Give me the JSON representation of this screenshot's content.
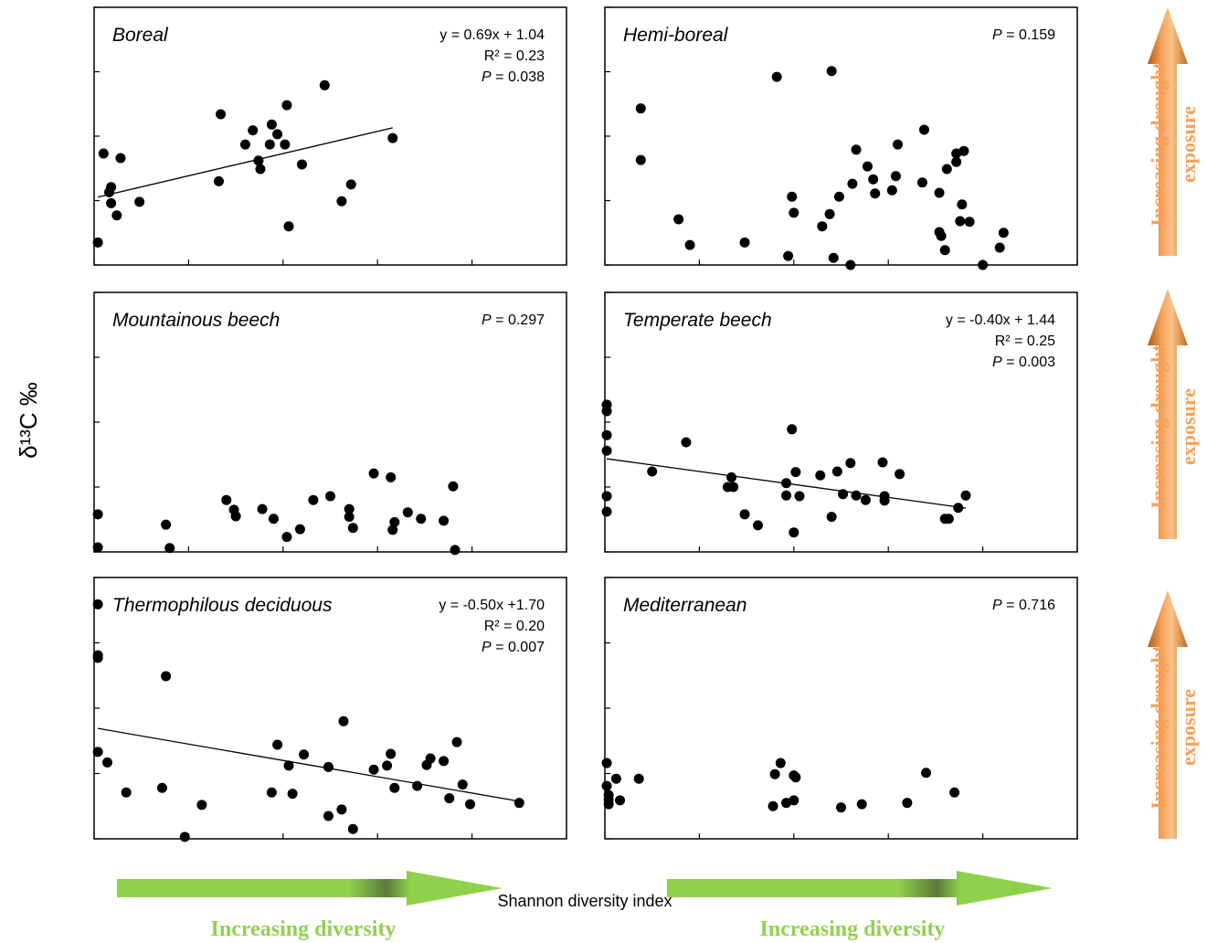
{
  "figure": {
    "x_axis_label": "Shannon diversity index",
    "y_axis_label": "δ¹³C ‰",
    "diversity_label": "Increasing diversity",
    "drought_label": [
      "Increasing drought",
      "exposure"
    ]
  },
  "chart_data": [
    {
      "type": "scatter",
      "title": "Boreal",
      "color": "#000000",
      "xlim": [
        0,
        2.5
      ],
      "ylim": [
        0,
        4
      ],
      "xticks": [
        0,
        0.5,
        1,
        1.5,
        2,
        2.5
      ],
      "yticks": [
        0,
        1,
        2,
        3,
        4
      ],
      "equation": "y = 0.69x + 1.04",
      "r_squared": "R² = 0.23",
      "p": {
        "symbol": "P",
        "text": " = 0.038"
      },
      "fit": {
        "slope": 0.69,
        "intercept": 1.04,
        "x_range": [
          0.02,
          1.58
        ]
      },
      "x": [
        0.02,
        0.05,
        0.08,
        0.09,
        0.09,
        0.12,
        0.14,
        0.24,
        0.66,
        0.67,
        0.8,
        0.84,
        0.87,
        0.88,
        0.94,
        0.97,
        0.93,
        1.01,
        1.02,
        1.03,
        1.1,
        1.22,
        1.31,
        1.36,
        1.58
      ],
      "values": [
        0.35,
        1.73,
        1.13,
        1.21,
        0.96,
        0.77,
        1.66,
        0.98,
        1.3,
        2.34,
        1.87,
        2.09,
        1.62,
        1.49,
        2.18,
        2.03,
        1.87,
        1.87,
        2.48,
        0.6,
        1.56,
        2.79,
        0.99,
        1.25,
        1.97
      ]
    },
    {
      "type": "scatter",
      "title": "Hemi-boreal",
      "color": "#000000",
      "xlim": [
        0,
        2.5
      ],
      "ylim": [
        0,
        4
      ],
      "xticks": [
        0,
        0.5,
        1,
        1.5,
        2,
        2.5
      ],
      "yticks": [
        0,
        1,
        2,
        3,
        4
      ],
      "p": {
        "symbol": "P",
        "text": " = 0.159"
      },
      "x": [
        0.19,
        0.19,
        0.39,
        0.45,
        0.74,
        0.91,
        0.97,
        0.99,
        1.0,
        1.15,
        1.19,
        1.2,
        1.21,
        1.24,
        1.3,
        1.31,
        1.33,
        1.39,
        1.42,
        1.43,
        1.52,
        1.54,
        1.55,
        1.68,
        1.69,
        1.77,
        1.77,
        1.78,
        1.8,
        1.81,
        1.86,
        1.86,
        1.9,
        1.89,
        1.88,
        1.93,
        2.0,
        2.09,
        2.11
      ],
      "values": [
        2.43,
        1.63,
        0.71,
        0.31,
        0.35,
        2.92,
        0.14,
        1.06,
        0.81,
        0.6,
        0.79,
        3.01,
        0.11,
        1.06,
        0,
        1.26,
        1.79,
        1.53,
        1.33,
        1.11,
        1.16,
        1.38,
        1.87,
        1.28,
        2.1,
        1.12,
        0.51,
        0.45,
        0.23,
        1.49,
        1.6,
        1.73,
        1.77,
        0.94,
        0.68,
        0.67,
        0,
        0.27,
        0.5
      ]
    },
    {
      "type": "scatter",
      "title": "Mountainous beech",
      "color": "#000000",
      "xlim": [
        0,
        2.5
      ],
      "ylim": [
        0,
        4
      ],
      "xticks": [
        0,
        0.5,
        1,
        1.5,
        2,
        2.5
      ],
      "yticks": [
        0,
        1,
        2,
        3,
        4
      ],
      "p": {
        "symbol": "P",
        "text": " = 0.297"
      },
      "x": [
        0.02,
        0.02,
        0.38,
        0.4,
        0.7,
        0.74,
        0.75,
        0.89,
        0.95,
        1.02,
        1.09,
        1.16,
        1.25,
        1.35,
        1.35,
        1.37,
        1.48,
        1.57,
        1.59,
        1.58,
        1.66,
        1.73,
        1.85,
        1.9,
        1.91
      ],
      "values": [
        0.58,
        0.07,
        0.42,
        0.06,
        0.8,
        0.65,
        0.55,
        0.66,
        0.51,
        0.23,
        0.35,
        0.8,
        0.86,
        0.66,
        0.54,
        0.37,
        1.21,
        1.15,
        0.46,
        0.34,
        0.61,
        0.51,
        0.48,
        1.01,
        0.03
      ]
    },
    {
      "type": "scatter",
      "title": "Temperate beech",
      "color": "#000000",
      "xlim": [
        0,
        2.5
      ],
      "ylim": [
        0,
        4
      ],
      "xticks": [
        0,
        0.5,
        1,
        1.5,
        2,
        2.5
      ],
      "yticks": [
        0,
        1,
        2,
        3,
        4
      ],
      "equation": "y = -0.40x + 1.44",
      "r_squared": "R² = 0.25",
      "p": {
        "symbol": "P",
        "text": " = 0.003"
      },
      "fit": {
        "slope": -0.4,
        "intercept": 1.44,
        "x_range": [
          0.01,
          1.91
        ]
      },
      "x": [
        0.01,
        0.01,
        0.01,
        0.01,
        0.01,
        0.01,
        0.25,
        0.43,
        0.65,
        0.67,
        0.68,
        0.74,
        0.81,
        0.96,
        0.96,
        0.99,
        1.0,
        1.01,
        1.03,
        1.14,
        1.2,
        1.23,
        1.26,
        1.3,
        1.33,
        1.38,
        1.47,
        1.48,
        1.48,
        1.56,
        1.8,
        1.82,
        1.87,
        1.91
      ],
      "values": [
        2.27,
        2.17,
        1.8,
        1.56,
        0.86,
        0.62,
        1.24,
        1.69,
        1.0,
        1.15,
        1.0,
        0.58,
        0.41,
        0.87,
        1.06,
        1.89,
        0.3,
        1.23,
        0.86,
        1.18,
        0.54,
        1.24,
        0.89,
        1.37,
        0.87,
        0.8,
        1.38,
        0.86,
        0.79,
        1.2,
        0.51,
        0.51,
        0.68,
        0.87
      ]
    },
    {
      "type": "scatter",
      "title": "Thermophilous deciduous",
      "color": "#000000",
      "xlim": [
        0,
        2.5
      ],
      "ylim": [
        0,
        4
      ],
      "xticks": [
        0,
        0.5,
        1,
        1.5,
        2,
        2.5
      ],
      "yticks": [
        0,
        1,
        2,
        3,
        4
      ],
      "equation": "y = -0.50x +1.70",
      "r_squared": "R² = 0.20",
      "p": {
        "symbol": "P",
        "text": " = 0.007"
      },
      "fit": {
        "slope": -0.5,
        "intercept": 1.7,
        "x_range": [
          0.02,
          2.25
        ]
      },
      "x": [
        0.02,
        0.02,
        0.02,
        0.02,
        0.07,
        0.17,
        0.36,
        0.38,
        0.48,
        0.57,
        0.94,
        0.97,
        1.03,
        1.05,
        1.11,
        1.24,
        1.24,
        1.31,
        1.32,
        1.37,
        1.48,
        1.55,
        1.57,
        1.59,
        1.71,
        1.76,
        1.78,
        1.85,
        1.88,
        1.92,
        1.95,
        1.99,
        2.25
      ],
      "values": [
        3.59,
        2.81,
        2.77,
        1.33,
        1.17,
        0.71,
        0.78,
        2.49,
        0.03,
        0.52,
        0.71,
        1.44,
        1.12,
        0.69,
        1.29,
        0.35,
        1.1,
        0.45,
        1.8,
        0.15,
        1.06,
        1.12,
        1.3,
        0.78,
        0.81,
        1.13,
        1.23,
        1.19,
        0.62,
        1.48,
        0.83,
        0.53,
        0.55
      ]
    },
    {
      "type": "scatter",
      "title": "Mediterranean",
      "color": "#000000",
      "xlim": [
        0,
        2.5
      ],
      "ylim": [
        0,
        4
      ],
      "xticks": [
        0,
        0.5,
        1,
        1.5,
        2,
        2.5
      ],
      "yticks": [
        0,
        1,
        2,
        3,
        4
      ],
      "p": {
        "symbol": "P",
        "text": " = 0.716"
      },
      "x": [
        0.01,
        0.01,
        0.02,
        0.02,
        0.02,
        0.06,
        0.08,
        0.18,
        0.89,
        0.9,
        0.93,
        0.96,
        1.0,
        1.0,
        1.01,
        1.25,
        1.36,
        1.6,
        1.7,
        1.85
      ],
      "values": [
        1.16,
        0.81,
        0.67,
        0.53,
        0.6,
        0.92,
        0.59,
        0.92,
        0.5,
        0.99,
        1.16,
        0.55,
        0.97,
        0.59,
        0.94,
        0.48,
        0.53,
        0.55,
        1.01,
        0.71
      ]
    }
  ]
}
